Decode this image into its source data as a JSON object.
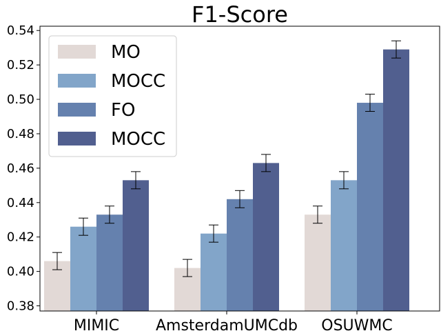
{
  "chart_data": {
    "type": "bar",
    "title": "F1-Score",
    "xlabel": "",
    "ylabel": "",
    "ylim": [
      0.377,
      0.5425
    ],
    "yticks": [
      "0.38",
      "0.40",
      "0.42",
      "0.44",
      "0.46",
      "0.48",
      "0.50",
      "0.52",
      "0.54"
    ],
    "categories": [
      "MIMIC",
      "AmsterdamUMCdb",
      "OSUWMC"
    ],
    "legend_position": "upper-left",
    "series": [
      {
        "name": "MO",
        "color": "#e2d9d6",
        "values": [
          0.406,
          0.402,
          0.433
        ],
        "errors": [
          0.005,
          0.005,
          0.005
        ]
      },
      {
        "name": "MOCC",
        "color": "#82a5c9",
        "values": [
          0.426,
          0.422,
          0.453
        ],
        "errors": [
          0.005,
          0.005,
          0.005
        ]
      },
      {
        "name": "FO",
        "color": "#6581ae",
        "values": [
          0.433,
          0.442,
          0.498
        ],
        "errors": [
          0.005,
          0.005,
          0.005
        ]
      },
      {
        "name": "MOCC",
        "color": "#515f8f",
        "values": [
          0.453,
          0.463,
          0.529
        ],
        "errors": [
          0.005,
          0.005,
          0.005
        ]
      }
    ]
  }
}
